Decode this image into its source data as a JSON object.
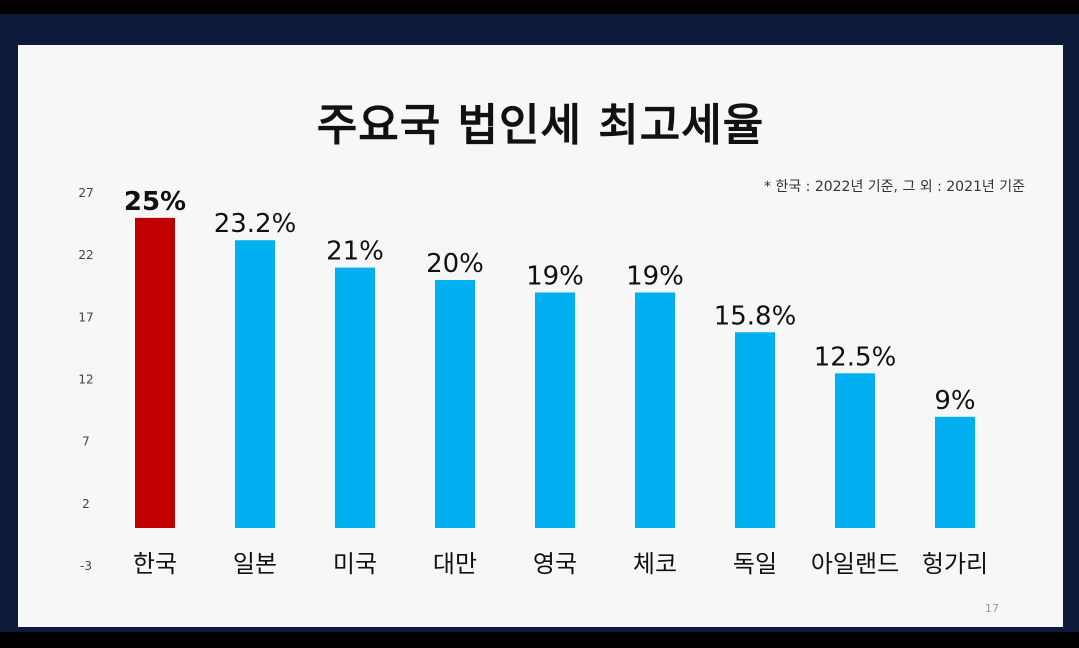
{
  "chart_data": {
    "type": "bar",
    "title": "주요국 법인세 최고세율",
    "note": "* 한국 : 2022년 기준, 그 외 : 2021년 기준",
    "categories": [
      "한국",
      "일본",
      "미국",
      "대만",
      "영국",
      "체코",
      "독일",
      "아일랜드",
      "헝가리"
    ],
    "values": [
      25,
      23.2,
      21,
      20,
      19,
      19,
      15.8,
      12.5,
      9
    ],
    "value_labels": [
      "25%",
      "23.2%",
      "21%",
      "20%",
      "19%",
      "19%",
      "15.8%",
      "12.5%",
      "9%"
    ],
    "yticks": [
      "27",
      "22",
      "17",
      "12",
      "7",
      "2",
      "-3"
    ],
    "ylim": [
      -3,
      27
    ],
    "grid": false,
    "legend": "none",
    "colors": {
      "highlight_bar": "#c00000",
      "highlight_label": "#c00000",
      "bar": "#00b0f0",
      "label": "#111111"
    }
  },
  "page_number": "17"
}
